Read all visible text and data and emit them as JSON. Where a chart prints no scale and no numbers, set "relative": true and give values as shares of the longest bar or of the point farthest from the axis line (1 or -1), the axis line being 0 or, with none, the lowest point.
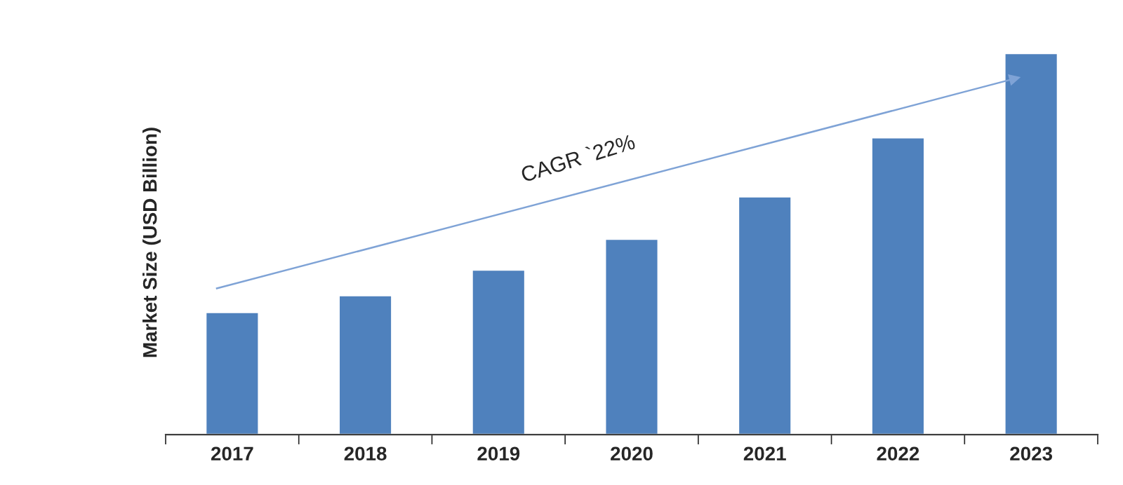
{
  "chart_data": {
    "type": "bar",
    "relative": true,
    "ylabel": "Market Size (USD Billion)",
    "categories": [
      "2017",
      "2018",
      "2019",
      "2020",
      "2021",
      "2022",
      "2023"
    ],
    "values": [
      0.321,
      0.365,
      0.432,
      0.513,
      0.624,
      0.779,
      1.0
    ],
    "color": "#4f81bd",
    "grid": false,
    "legend": false,
    "annotations": [
      "CAGR `22%"
    ]
  }
}
